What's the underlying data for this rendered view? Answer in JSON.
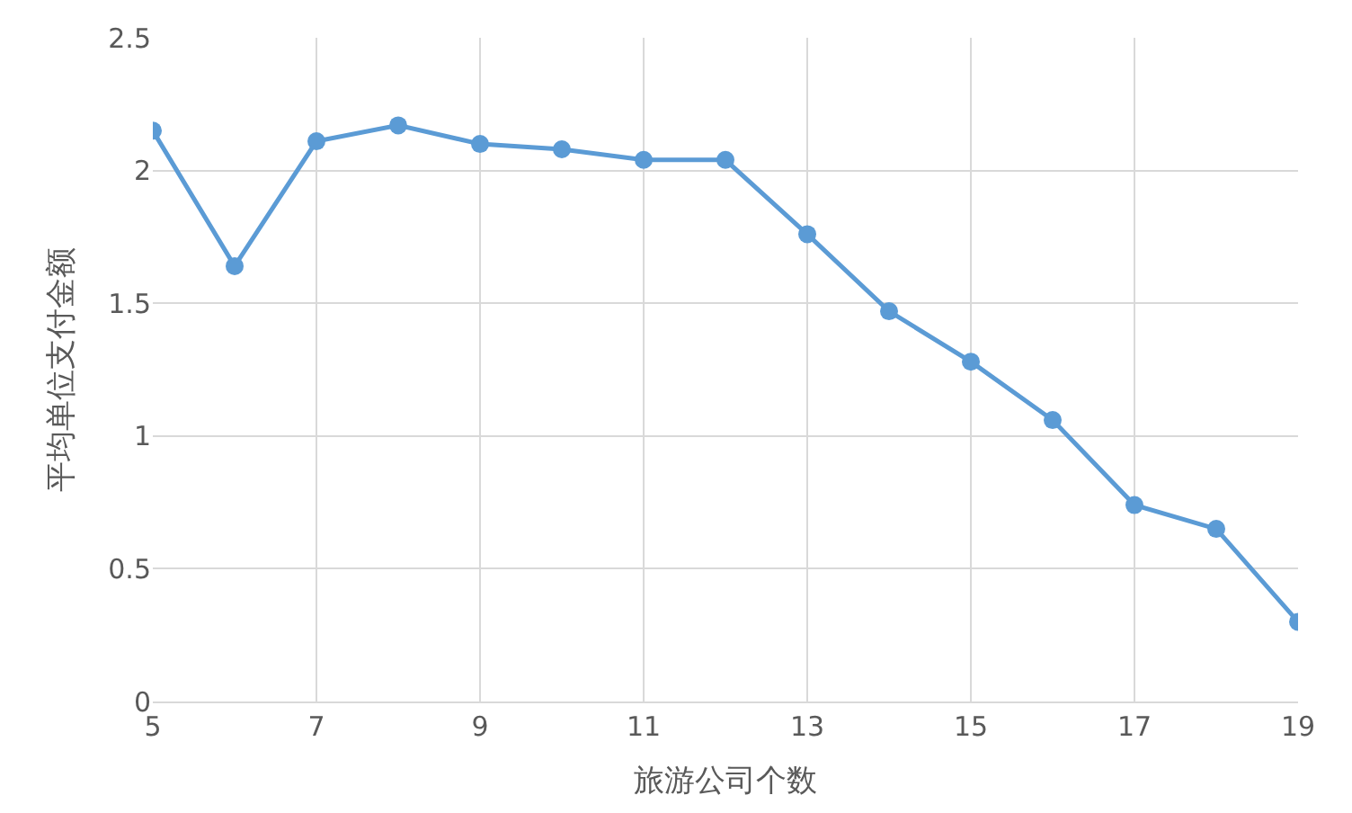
{
  "chart_data": {
    "type": "line",
    "xlabel": "旅游公司个数",
    "ylabel": "平均单位支付金额",
    "x": [
      5,
      6,
      7,
      8,
      9,
      10,
      11,
      12,
      13,
      14,
      15,
      16,
      17,
      18,
      19
    ],
    "series": [
      {
        "color": "#5b9bd5",
        "values": [
          2.15,
          1.64,
          2.11,
          2.17,
          2.1,
          2.08,
          2.04,
          2.04,
          1.76,
          1.47,
          1.28,
          1.06,
          0.74,
          0.65,
          0.3
        ]
      }
    ],
    "xlim": [
      5,
      19
    ],
    "xticks": [
      5,
      7,
      9,
      11,
      13,
      15,
      17,
      19
    ],
    "ylim": [
      0,
      2.5
    ],
    "yticks": [
      0,
      0.5,
      1,
      1.5,
      2,
      2.5
    ],
    "grid": true,
    "legend": false,
    "marker": "circle",
    "line_style": "solid"
  }
}
